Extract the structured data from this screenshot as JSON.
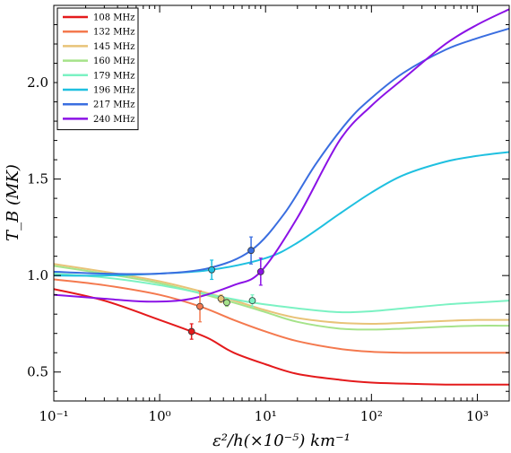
{
  "chart_data": {
    "type": "line",
    "title": "",
    "xlabel": "ε²/h(×10⁻⁵) km⁻¹",
    "ylabel": "T_B (MK)",
    "xscale": "log",
    "xlim": [
      0.1,
      2000
    ],
    "ylim": [
      0.35,
      2.4
    ],
    "x_ticks": [
      {
        "value": 0.1,
        "label": "10⁻¹"
      },
      {
        "value": 1,
        "label": "10⁰"
      },
      {
        "value": 10,
        "label": "10¹"
      },
      {
        "value": 100,
        "label": "10²"
      },
      {
        "value": 1000,
        "label": "10³"
      }
    ],
    "y_ticks": [
      {
        "value": 0.5,
        "label": "0.5"
      },
      {
        "value": 1.0,
        "label": "1.0"
      },
      {
        "value": 1.5,
        "label": "1.5"
      },
      {
        "value": 2.0,
        "label": "2.0"
      }
    ],
    "grid": false,
    "legend_position": "top-left",
    "series": [
      {
        "name": "108 MHz",
        "color": "#e41a1c",
        "x": [
          0.1,
          0.3,
          1,
          2,
          3,
          5,
          10,
          20,
          50,
          100,
          200,
          500,
          1000,
          2000
        ],
        "y": [
          0.93,
          0.87,
          0.77,
          0.71,
          0.67,
          0.6,
          0.54,
          0.49,
          0.46,
          0.445,
          0.44,
          0.435,
          0.435,
          0.435
        ],
        "point": {
          "x": 2,
          "y": 0.71,
          "err": 0.04
        }
      },
      {
        "name": "132 MHz",
        "color": "#f4794e",
        "x": [
          0.1,
          0.3,
          1,
          2.4,
          5,
          10,
          20,
          50,
          100,
          200,
          500,
          1000,
          2000
        ],
        "y": [
          0.98,
          0.95,
          0.9,
          0.84,
          0.77,
          0.71,
          0.66,
          0.62,
          0.605,
          0.6,
          0.6,
          0.6,
          0.6
        ],
        "point": {
          "x": 2.4,
          "y": 0.84,
          "err": 0.08
        }
      },
      {
        "name": "145 MHz",
        "color": "#e8c378",
        "x": [
          0.1,
          0.3,
          1,
          3.8,
          10,
          20,
          50,
          100,
          200,
          500,
          1000,
          2000
        ],
        "y": [
          1.06,
          1.02,
          0.97,
          0.89,
          0.82,
          0.78,
          0.755,
          0.75,
          0.755,
          0.765,
          0.77,
          0.77
        ],
        "point": {
          "x": 3.8,
          "y": 0.88,
          "err": 0.02
        }
      },
      {
        "name": "160 MHz",
        "color": "#a6e38a",
        "x": [
          0.1,
          0.3,
          1,
          4.3,
          10,
          20,
          50,
          100,
          200,
          500,
          1000,
          2000
        ],
        "y": [
          1.05,
          1.01,
          0.96,
          0.87,
          0.81,
          0.76,
          0.725,
          0.72,
          0.725,
          0.735,
          0.74,
          0.74
        ],
        "point": {
          "x": 4.3,
          "y": 0.86,
          "err": 0.02
        }
      },
      {
        "name": "179 MHz",
        "color": "#7bf2c3",
        "x": [
          0.1,
          0.3,
          1,
          3,
          7.5,
          20,
          50,
          100,
          200,
          500,
          1000,
          2000
        ],
        "y": [
          1.01,
          0.99,
          0.95,
          0.9,
          0.86,
          0.83,
          0.81,
          0.815,
          0.83,
          0.85,
          0.86,
          0.87
        ],
        "point": {
          "x": 7.5,
          "y": 0.87,
          "err": 0.03
        }
      },
      {
        "name": "196 MHz",
        "color": "#1fc0e0",
        "x": [
          0.1,
          0.3,
          1,
          3.1,
          10,
          20,
          50,
          100,
          200,
          500,
          1000,
          2000
        ],
        "y": [
          1.0,
          1.0,
          1.01,
          1.03,
          1.09,
          1.17,
          1.32,
          1.43,
          1.52,
          1.59,
          1.62,
          1.64
        ],
        "point": {
          "x": 3.1,
          "y": 1.03,
          "err": 0.05
        }
      },
      {
        "name": "217 MHz",
        "color": "#3a6ee0",
        "x": [
          0.1,
          0.3,
          1,
          3,
          7.3,
          15,
          30,
          60,
          100,
          200,
          500,
          1000,
          2000
        ],
        "y": [
          1.02,
          1.01,
          1.01,
          1.04,
          1.13,
          1.32,
          1.58,
          1.8,
          1.92,
          2.05,
          2.17,
          2.23,
          2.28
        ],
        "point": {
          "x": 7.3,
          "y": 1.13,
          "err": 0.07
        }
      },
      {
        "name": "240 MHz",
        "color": "#8b12e6",
        "x": [
          0.1,
          0.3,
          0.8,
          2,
          5,
          9,
          20,
          50,
          100,
          200,
          500,
          1000,
          2000
        ],
        "y": [
          0.9,
          0.88,
          0.865,
          0.88,
          0.95,
          1.02,
          1.3,
          1.7,
          1.88,
          2.02,
          2.2,
          2.3,
          2.38
        ],
        "point": {
          "x": 9,
          "y": 1.02,
          "err": 0.07
        }
      }
    ]
  }
}
